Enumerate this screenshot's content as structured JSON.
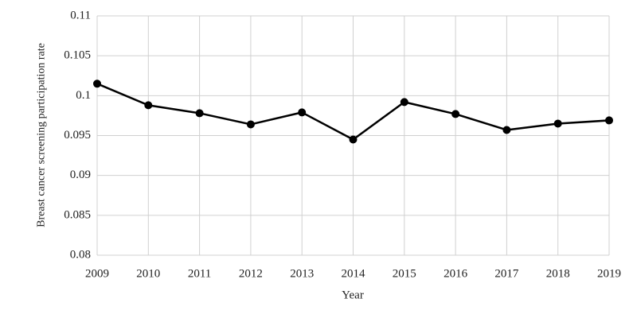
{
  "chart_data": {
    "type": "line",
    "x": [
      2009,
      2010,
      2011,
      2012,
      2013,
      2014,
      2015,
      2016,
      2017,
      2018,
      2019
    ],
    "series": [
      {
        "color": "#000000",
        "values": [
          0.1015,
          0.0988,
          0.0978,
          0.0964,
          0.0979,
          0.0945,
          0.0992,
          0.0977,
          0.0957,
          0.0965,
          0.0969
        ]
      }
    ],
    "xlim": [
      2009,
      2019
    ],
    "xticks": [
      2009,
      2010,
      2011,
      2012,
      2013,
      2014,
      2015,
      2016,
      2017,
      2018,
      2019
    ],
    "ylim": [
      0.08,
      0.11
    ],
    "yticks": [
      0.08,
      0.085,
      0.09,
      0.095,
      0.1,
      0.105,
      0.11
    ],
    "xlabel": "Year",
    "ylabel": "Breast cancer screening participation rate",
    "grid": true
  }
}
